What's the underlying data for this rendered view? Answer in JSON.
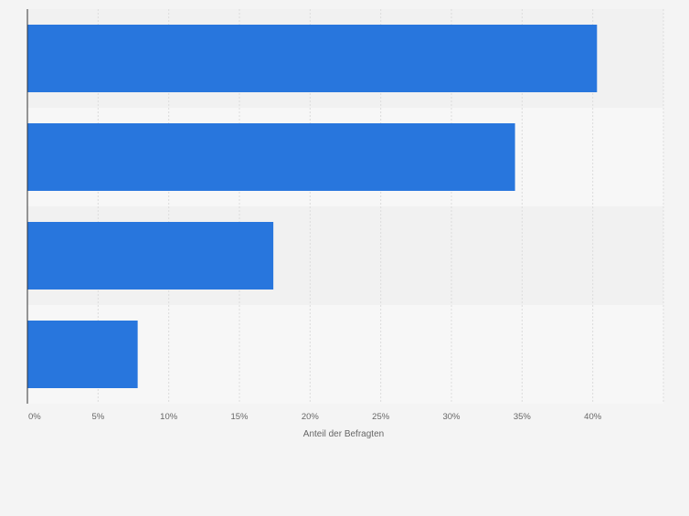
{
  "colors": {
    "background": "#f4f4f4",
    "band_dark": "#f1f1f1",
    "band_light": "#f7f7f7",
    "bar": "#2876dd",
    "grid": "#dcdcdc",
    "axis": "#333333",
    "tick_text": "#666666"
  },
  "chart_data": {
    "type": "bar",
    "orientation": "horizontal",
    "categories": [
      "",
      "",
      "",
      ""
    ],
    "values": [
      40.3,
      34.5,
      17.4,
      7.8
    ],
    "xlabel": "Anteil der Befragten",
    "xlim": [
      0,
      45
    ],
    "xticks": [
      0,
      5,
      10,
      15,
      20,
      25,
      30,
      35,
      40
    ],
    "tick_labels": [
      "0%",
      "5%",
      "10%",
      "15%",
      "20%",
      "25%",
      "30%",
      "35%",
      "40%"
    ],
    "grid": true,
    "legend": "none"
  }
}
